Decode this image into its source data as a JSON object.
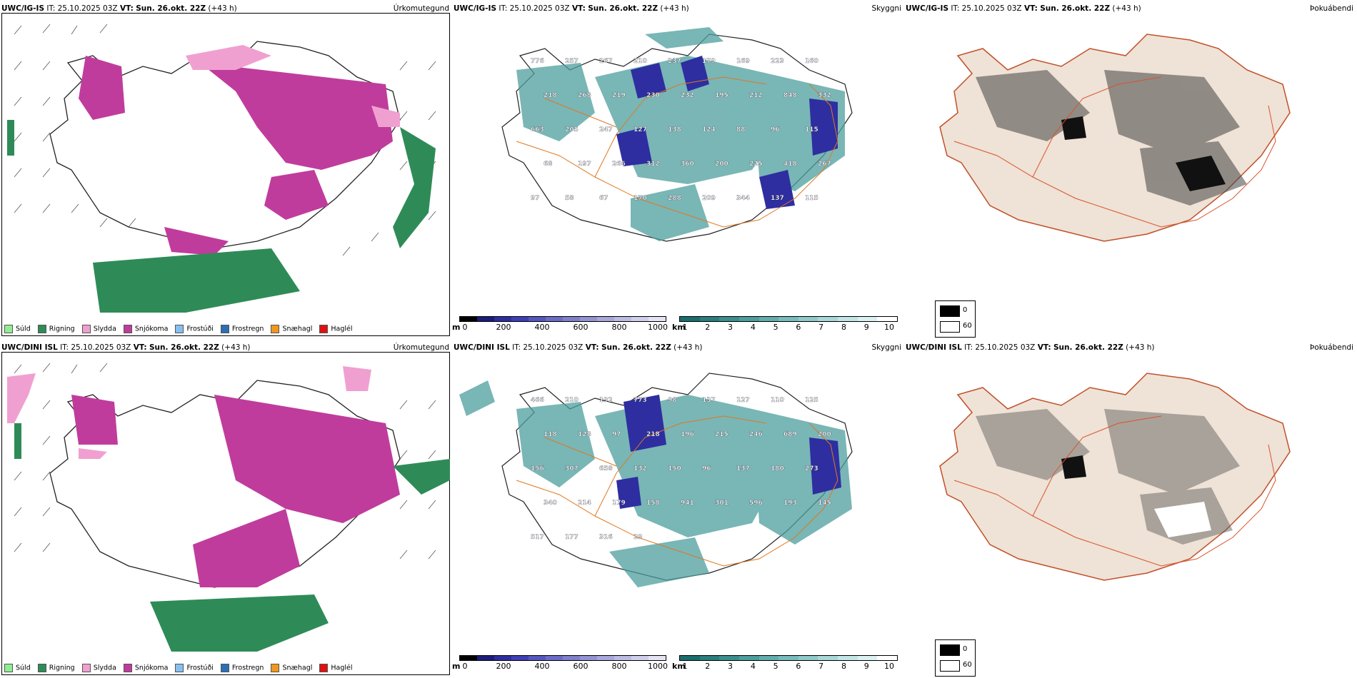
{
  "panels_top": {
    "precip": {
      "model": "UWC/IG-IS",
      "it": "IT: 25.10.2025 03Z",
      "vt_label": "VT:",
      "vt": "Sun. 26.okt. 22Z",
      "lead": "(+43 h)",
      "title": "Úrkomutegund"
    },
    "cloud": {
      "model": "UWC/IG-IS",
      "it": "IT: 25.10.2025 03Z",
      "vt_label": "VT:",
      "vt": "Sun. 26.okt. 22Z",
      "lead": "(+43 h)",
      "title": "Skyggni"
    },
    "fog": {
      "model": "UWC/IG-IS",
      "it": "IT: 25.10.2025 03Z",
      "vt_label": "VT:",
      "vt": "Sun. 26.okt. 22Z",
      "lead": "(+43 h)",
      "title": "Þokuábendi"
    }
  },
  "panels_bottom": {
    "precip": {
      "model": "UWC/DINI ISL",
      "it": "IT: 25.10.2025 03Z",
      "vt_label": "VT:",
      "vt": "Sun. 26.okt. 22Z",
      "lead": "(+43 h)",
      "title": "Úrkomutegund"
    },
    "cloud": {
      "model": "UWC/DINI ISL",
      "it": "IT: 25.10.2025 03Z",
      "vt_label": "VT:",
      "vt": "Sun. 26.okt. 22Z",
      "lead": "(+43 h)",
      "title": "Skyggni"
    },
    "fog": {
      "model": "UWC/DINI ISL",
      "it": "IT: 25.10.2025 03Z",
      "vt_label": "VT:",
      "vt": "Sun. 26.okt. 22Z",
      "lead": "(+43 h)",
      "title": "Þokuábendi"
    }
  },
  "precip_legend": [
    {
      "label": "Súld",
      "color": "#90ee90"
    },
    {
      "label": "Rigning",
      "color": "#2e8b57"
    },
    {
      "label": "Slydda",
      "color": "#f0a0d0"
    },
    {
      "label": "Snjókoma",
      "color": "#c03c9c"
    },
    {
      "label": "Frostúði",
      "color": "#87c0f0"
    },
    {
      "label": "Frostregn",
      "color": "#2c6fb5"
    },
    {
      "label": "Snæhagl",
      "color": "#f0961e"
    },
    {
      "label": "Haglél",
      "color": "#e01010"
    }
  ],
  "cloud_base_bar": {
    "unit": "m",
    "ticks": [
      "0",
      "200",
      "400",
      "600",
      "800",
      "1000"
    ],
    "colors": [
      "#000000",
      "#1c1c7a",
      "#2e2ea0",
      "#3f3fb8",
      "#5757c0",
      "#6c6cc8",
      "#8080cc",
      "#9494d4",
      "#a8a8dc",
      "#bcbce4",
      "#d0d0ec",
      "#e4e4f4"
    ]
  },
  "visibility_bar": {
    "unit": "km",
    "ticks": [
      "1",
      "2",
      "3",
      "4",
      "5",
      "6",
      "7",
      "8",
      "9",
      "10"
    ],
    "colors": [
      "#1a6e6e",
      "#2a7e7e",
      "#3b8f8f",
      "#4d9e9e",
      "#62aeae",
      "#78bcbc",
      "#90caca",
      "#a8d8d8",
      "#c2e6e6",
      "#dcf2f2",
      "#ffffff"
    ]
  },
  "fog_legend": [
    {
      "label": "0",
      "color": "#000000"
    },
    {
      "label": "60",
      "color": "#ffffff"
    }
  ],
  "labels_top": [
    "776",
    "257",
    "267",
    "210",
    "237",
    "179",
    "169",
    "223",
    "160",
    "218",
    "268",
    "219",
    "230",
    "232",
    "195",
    "212",
    "848",
    "332",
    "663",
    "205",
    "247",
    "127",
    "138",
    "124",
    "88",
    "96",
    "115",
    "68",
    "197",
    "266",
    "312",
    "360",
    "200",
    "225",
    "418",
    "267",
    "97",
    "58",
    "67",
    "170",
    "288",
    "209",
    "344",
    "137",
    "115"
  ],
  "labels_bottom": [
    "466",
    "210",
    "192",
    "773",
    "98",
    "137",
    "127",
    "110",
    "125",
    "118",
    "128",
    "97",
    "218",
    "196",
    "215",
    "246",
    "689",
    "200",
    "156",
    "307",
    "658",
    "132",
    "150",
    "96",
    "137",
    "180",
    "273",
    "340",
    "214",
    "179",
    "158",
    "941",
    "301",
    "596",
    "193",
    "145",
    "517",
    "177",
    "316",
    "29"
  ]
}
